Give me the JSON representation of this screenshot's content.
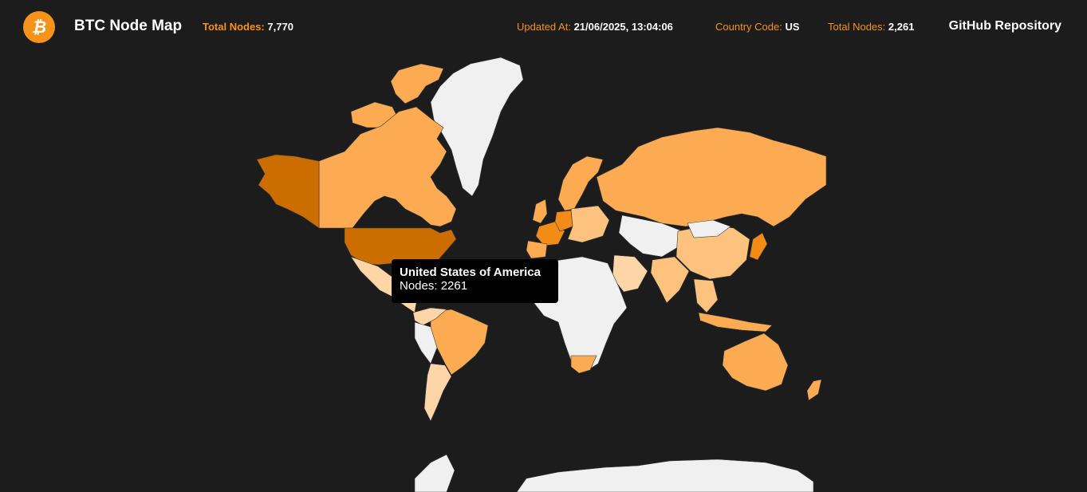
{
  "header": {
    "app_title": "BTC Node Map",
    "logo_icon": "bitcoin-icon",
    "total_nodes": {
      "label": "Total Nodes:",
      "value": "7,770"
    },
    "updated_at": {
      "label": "Updated At:",
      "value": "21/06/2025, 13:04:06"
    },
    "country_code": {
      "label": "Country Code:",
      "value": "US"
    },
    "country_total_nodes": {
      "label": "Total Nodes:",
      "value": "2,261"
    },
    "github_link": "GitHub Repository"
  },
  "tooltip": {
    "country": "United States of America",
    "nodes_text": "Nodes: 2261"
  },
  "colors": {
    "background": "#1c1c1c",
    "accent": "#f7931a",
    "no_data": "#f0f0f0",
    "level_low": "#fdd5a6",
    "level_mid": "#fdc37e",
    "level_high": "#fdab53",
    "level_top": "#f38b17",
    "selected": "#cc6d00"
  },
  "map_regions": [
    {
      "name": "Greenland",
      "level": "none"
    },
    {
      "name": "Canada",
      "level": "high"
    },
    {
      "name": "Alaska (United States of America)",
      "level": "selected"
    },
    {
      "name": "United States of America",
      "level": "selected",
      "nodes": 2261
    },
    {
      "name": "Mexico",
      "level": "low"
    },
    {
      "name": "Brazil",
      "level": "high"
    },
    {
      "name": "Argentina",
      "level": "low"
    },
    {
      "name": "Germany",
      "level": "top"
    },
    {
      "name": "France",
      "level": "top"
    },
    {
      "name": "Russia",
      "level": "high"
    },
    {
      "name": "China",
      "level": "mid"
    },
    {
      "name": "India",
      "level": "mid"
    },
    {
      "name": "Japan",
      "level": "top"
    },
    {
      "name": "Australia",
      "level": "high"
    },
    {
      "name": "South Africa",
      "level": "high"
    },
    {
      "name": "Antarctica",
      "level": "none"
    }
  ]
}
